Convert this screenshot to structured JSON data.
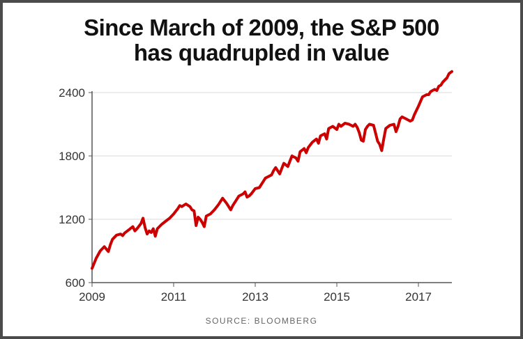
{
  "chart_data": {
    "type": "line",
    "title_lines": [
      "Since March of 2009, the S&P 500",
      "has quadrupled in value"
    ],
    "source": "SOURCE: BLOOMBERG",
    "x_ticks": [
      "2009",
      "2011",
      "2013",
      "2015",
      "2017"
    ],
    "y_ticks": [
      "600",
      "1200",
      "1800",
      "2400"
    ],
    "xlim": [
      2009,
      2017.82
    ],
    "ylim": [
      600,
      2400
    ],
    "grid": true,
    "colors": {
      "line": "#cc0000",
      "grid": "#d9d9d9",
      "axis": "#555555",
      "text": "#333333"
    },
    "series": [
      {
        "x": [
          2009.0,
          2009.1,
          2009.2,
          2009.3,
          2009.4,
          2009.45,
          2009.5,
          2009.6,
          2009.7,
          2009.75,
          2009.8,
          2009.9,
          2010.0,
          2010.05,
          2010.1,
          2010.2,
          2010.25,
          2010.3,
          2010.35,
          2010.4,
          2010.45,
          2010.5,
          2010.55,
          2010.6,
          2010.7,
          2010.8,
          2010.9,
          2011.0,
          2011.1,
          2011.15,
          2011.2,
          2011.3,
          2011.4,
          2011.45,
          2011.5,
          2011.55,
          2011.6,
          2011.65,
          2011.7,
          2011.75,
          2011.8,
          2011.9,
          2012.0,
          2012.1,
          2012.2,
          2012.3,
          2012.4,
          2012.45,
          2012.5,
          2012.6,
          2012.7,
          2012.75,
          2012.8,
          2012.85,
          2012.9,
          2013.0,
          2013.1,
          2013.2,
          2013.25,
          2013.3,
          2013.4,
          2013.45,
          2013.5,
          2013.6,
          2013.65,
          2013.7,
          2013.8,
          2013.85,
          2013.9,
          2014.0,
          2014.05,
          2014.1,
          2014.2,
          2014.25,
          2014.3,
          2014.4,
          2014.5,
          2014.55,
          2014.6,
          2014.7,
          2014.75,
          2014.8,
          2014.9,
          2015.0,
          2015.05,
          2015.1,
          2015.2,
          2015.3,
          2015.4,
          2015.45,
          2015.5,
          2015.55,
          2015.6,
          2015.65,
          2015.7,
          2015.75,
          2015.8,
          2015.9,
          2016.0,
          2016.05,
          2016.1,
          2016.15,
          2016.2,
          2016.3,
          2016.4,
          2016.45,
          2016.5,
          2016.55,
          2016.6,
          2016.7,
          2016.8,
          2016.85,
          2016.9,
          2017.0,
          2017.1,
          2017.2,
          2017.25,
          2017.3,
          2017.4,
          2017.45,
          2017.5,
          2017.55,
          2017.6,
          2017.7,
          2017.75,
          2017.82
        ],
        "y": [
          735,
          830,
          900,
          940,
          895,
          960,
          1010,
          1050,
          1060,
          1045,
          1070,
          1100,
          1130,
          1090,
          1110,
          1160,
          1210,
          1120,
          1060,
          1090,
          1075,
          1110,
          1040,
          1110,
          1150,
          1180,
          1210,
          1250,
          1300,
          1330,
          1320,
          1345,
          1320,
          1290,
          1280,
          1140,
          1220,
          1200,
          1170,
          1130,
          1230,
          1250,
          1290,
          1340,
          1400,
          1350,
          1290,
          1330,
          1360,
          1420,
          1440,
          1460,
          1410,
          1420,
          1440,
          1490,
          1500,
          1560,
          1590,
          1600,
          1620,
          1660,
          1690,
          1630,
          1680,
          1730,
          1700,
          1750,
          1800,
          1780,
          1750,
          1840,
          1870,
          1830,
          1880,
          1930,
          1960,
          1920,
          1990,
          2010,
          1960,
          2060,
          2080,
          2050,
          2100,
          2080,
          2110,
          2100,
          2080,
          2100,
          2070,
          2020,
          1950,
          1940,
          2050,
          2080,
          2100,
          2090,
          1940,
          1910,
          1850,
          1960,
          2060,
          2090,
          2100,
          2030,
          2080,
          2150,
          2170,
          2150,
          2130,
          2140,
          2190,
          2270,
          2360,
          2380,
          2380,
          2410,
          2430,
          2420,
          2460,
          2470,
          2500,
          2540,
          2580,
          2600
        ]
      }
    ]
  }
}
